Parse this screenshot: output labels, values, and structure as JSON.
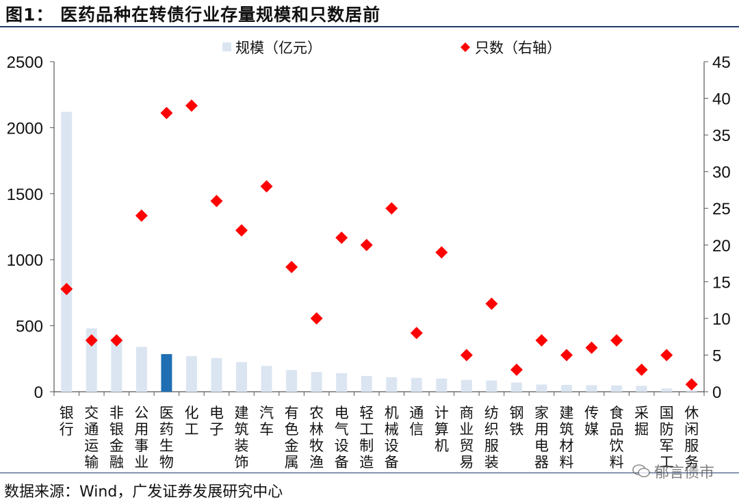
{
  "figure": {
    "title": "图1：  医药品种在转债行业存量规模和只数居前",
    "source": "数据来源：Wind，广发证券发展研究中心",
    "watermark": "郁言债市"
  },
  "colors": {
    "bar": "#dbe5f1",
    "highlight_bar": "#1f6fb2",
    "marker": "#ff0000",
    "rule": "#1f3a68"
  },
  "chart_data": {
    "type": "bar",
    "categories": [
      "银行",
      "交通运输",
      "非银金融",
      "公用事业",
      "医药生物",
      "化工",
      "电子",
      "建筑装饰",
      "汽车",
      "有色金属",
      "农林牧渔",
      "电气设备",
      "轻工制造",
      "机械设备",
      "通信",
      "计算机",
      "商业贸易",
      "纺织服装",
      "钢铁",
      "家用电器",
      "建筑材料",
      "传媒",
      "食品饮料",
      "采掘",
      "国防军工",
      "休闲服务"
    ],
    "series": [
      {
        "name": "规模（亿元）",
        "type": "bar",
        "axis": "left",
        "values": [
          2120,
          480,
          380,
          340,
          285,
          270,
          255,
          225,
          195,
          165,
          150,
          140,
          120,
          110,
          105,
          100,
          90,
          85,
          70,
          55,
          52,
          50,
          48,
          45,
          25,
          10
        ],
        "highlight_index": 4
      },
      {
        "name": "只数（右轴）",
        "type": "scatter",
        "axis": "right",
        "values": [
          14,
          7,
          7,
          24,
          38,
          39,
          26,
          22,
          28,
          17,
          10,
          21,
          20,
          25,
          8,
          19,
          5,
          12,
          3,
          7,
          5,
          6,
          7,
          3,
          5,
          1
        ]
      }
    ],
    "ylim_left": [
      0,
      2500
    ],
    "yticks_left": [
      0,
      500,
      1000,
      1500,
      2000,
      2500
    ],
    "ylim_right": [
      0,
      45
    ],
    "yticks_right": [
      0,
      5,
      10,
      15,
      20,
      25,
      30,
      35,
      40,
      45
    ],
    "legend_position": "top-center",
    "grid": false
  }
}
